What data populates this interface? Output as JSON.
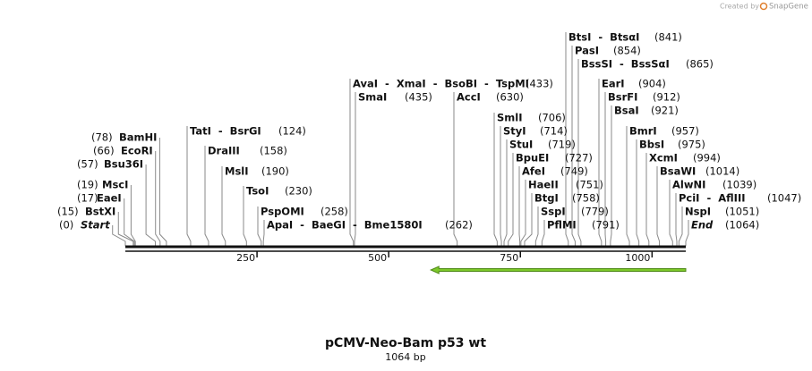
{
  "header": {
    "created_by": "Created by",
    "brand": "SnapGene"
  },
  "map": {
    "title": "pCMV-Neo-Bam p53 wt",
    "length_label": "1064 bp",
    "range": [
      0,
      1064
    ],
    "ticks": [
      250,
      500,
      750,
      1000
    ],
    "feature": {
      "start": 580,
      "end": 1064,
      "color": "#7dc82a"
    },
    "sites": [
      {
        "label": "BamHI",
        "position": {
          "value": 78,
          "label": "(78)"
        }
      },
      {
        "label": "EcoRI",
        "position": {
          "value": 66,
          "label": "(66)"
        }
      },
      {
        "label": "Bsu36I",
        "position": {
          "value": 57,
          "label": "(57)"
        }
      },
      {
        "label": "MscI",
        "position": {
          "value": 19,
          "label": "(19)"
        }
      },
      {
        "label": "EaeI",
        "position": {
          "value": 17,
          "label": "(17)"
        }
      },
      {
        "label": "BstXI",
        "position": {
          "value": 15,
          "label": "(15)"
        }
      },
      {
        "label": "Start",
        "position": {
          "value": 0,
          "label": "(0)"
        }
      },
      {
        "label": "TatI  -  BsrGI",
        "position": {
          "value": 124,
          "label": "(124)"
        }
      },
      {
        "label": "DraIII",
        "position": {
          "value": 158,
          "label": "(158)"
        }
      },
      {
        "label": "MslI",
        "position": {
          "value": 190,
          "label": "(190)"
        }
      },
      {
        "label": "TsoI",
        "position": {
          "value": 230,
          "label": "(230)"
        }
      },
      {
        "label": "PspOMI",
        "position": {
          "value": 258,
          "label": "(258)"
        }
      },
      {
        "label": "ApaI  -  BaeGI  -  Bme1580I",
        "position": {
          "value": 262,
          "label": "(262)"
        }
      },
      {
        "label": "AvaI  -  XmaI  -  BsoBI  -  TspMI",
        "position": {
          "value": 433,
          "label": "(433)"
        }
      },
      {
        "label": "SmaI",
        "position": {
          "value": 435,
          "label": "(435)"
        }
      },
      {
        "label": "AccI",
        "position": {
          "value": 630,
          "label": "(630)"
        }
      },
      {
        "label": "SmlI",
        "position": {
          "value": 706,
          "label": "(706)"
        }
      },
      {
        "label": "StyI",
        "position": {
          "value": 714,
          "label": "(714)"
        }
      },
      {
        "label": "StuI",
        "position": {
          "value": 719,
          "label": "(719)"
        }
      },
      {
        "label": "BpuEI",
        "position": {
          "value": 727,
          "label": "(727)"
        }
      },
      {
        "label": "AfeI",
        "position": {
          "value": 749,
          "label": "(749)"
        }
      },
      {
        "label": "HaeII",
        "position": {
          "value": 751,
          "label": "(751)"
        }
      },
      {
        "label": "BtgI",
        "position": {
          "value": 758,
          "label": "(758)"
        }
      },
      {
        "label": "SspI",
        "position": {
          "value": 779,
          "label": "(779)"
        }
      },
      {
        "label": "PflMI",
        "position": {
          "value": 791,
          "label": "(791)"
        }
      },
      {
        "label": "BtsI  -  BtsαI",
        "position": {
          "value": 841,
          "label": "(841)"
        }
      },
      {
        "label": "PasI",
        "position": {
          "value": 854,
          "label": "(854)"
        }
      },
      {
        "label": "BssSI  -  BssSαI",
        "position": {
          "value": 865,
          "label": "(865)"
        }
      },
      {
        "label": "EarI",
        "position": {
          "value": 904,
          "label": "(904)"
        }
      },
      {
        "label": "BsrFI",
        "position": {
          "value": 912,
          "label": "(912)"
        }
      },
      {
        "label": "BsaI",
        "position": {
          "value": 921,
          "label": "(921)"
        }
      },
      {
        "label": "BmrI",
        "position": {
          "value": 957,
          "label": "(957)"
        }
      },
      {
        "label": "BbsI",
        "position": {
          "value": 975,
          "label": "(975)"
        }
      },
      {
        "label": "XcmI",
        "position": {
          "value": 994,
          "label": "(994)"
        }
      },
      {
        "label": "BsaWI",
        "position": {
          "value": 1014,
          "label": "(1014)"
        }
      },
      {
        "label": "AlwNI",
        "position": {
          "value": 1039,
          "label": "(1039)"
        }
      },
      {
        "label": "PciI  -  AflIII",
        "position": {
          "value": 1047,
          "label": "(1047)"
        }
      },
      {
        "label": "NspI",
        "position": {
          "value": 1051,
          "label": "(1051)"
        }
      },
      {
        "label": "End",
        "position": {
          "value": 1064,
          "label": "(1064)"
        }
      }
    ]
  }
}
